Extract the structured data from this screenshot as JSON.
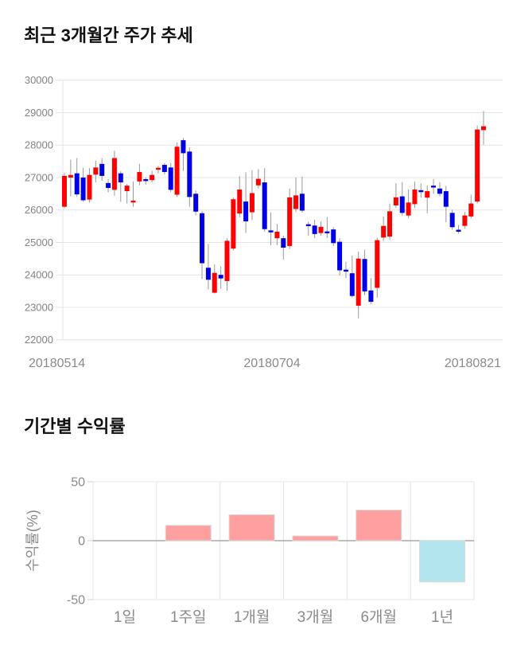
{
  "price_section": {
    "title": "최근 3개월간 주가 추세"
  },
  "returns_section": {
    "title": "기간별 수익률"
  },
  "chart_data": [
    {
      "type": "candlestick",
      "title": "최근 3개월간 주가 추세",
      "ylim": [
        22000,
        30000
      ],
      "y_ticks": [
        30000,
        29000,
        28000,
        27000,
        26000,
        25000,
        24000,
        23000,
        22000
      ],
      "x_tick_labels": [
        "20180514",
        "20180704",
        "20180821"
      ],
      "grid": true,
      "up_color": "#ff0000",
      "down_color": "#0000e6",
      "wick_color": "#999999",
      "grid_color": "#e4e4e4",
      "tick_label_color": "#828282",
      "candle_format": [
        "open",
        "high",
        "low",
        "close"
      ],
      "candles": [
        [
          26100,
          27150,
          26050,
          27050
        ],
        [
          27000,
          27550,
          26420,
          27080
        ],
        [
          27130,
          27600,
          26400,
          26480
        ],
        [
          27000,
          27300,
          26250,
          26300
        ],
        [
          26320,
          27290,
          26230,
          27080
        ],
        [
          27090,
          27520,
          26850,
          27310
        ],
        [
          27420,
          27600,
          26900,
          27050
        ],
        [
          26830,
          26950,
          26550,
          26680
        ],
        [
          26620,
          27830,
          26440,
          27600
        ],
        [
          27130,
          27200,
          26250,
          26850
        ],
        [
          26580,
          26800,
          26200,
          26750
        ],
        [
          26230,
          26880,
          26100,
          26290
        ],
        [
          26880,
          27420,
          26760,
          27170
        ],
        [
          26950,
          27000,
          26780,
          26900
        ],
        [
          26920,
          27210,
          26850,
          27080
        ],
        [
          27280,
          27360,
          27130,
          27300
        ],
        [
          27390,
          27450,
          27100,
          27170
        ],
        [
          27310,
          27450,
          26550,
          26620
        ],
        [
          26470,
          28080,
          26400,
          27950
        ],
        [
          28150,
          28220,
          27200,
          27750
        ],
        [
          27800,
          27930,
          26100,
          26400
        ],
        [
          26500,
          26600,
          25830,
          25950
        ],
        [
          25900,
          25960,
          23870,
          24360
        ],
        [
          24220,
          24950,
          23550,
          23850
        ],
        [
          23450,
          24320,
          23430,
          24060
        ],
        [
          24000,
          24260,
          23570,
          23890
        ],
        [
          23810,
          25130,
          23510,
          25050
        ],
        [
          24810,
          26380,
          24750,
          26330
        ],
        [
          25890,
          27040,
          25770,
          26630
        ],
        [
          26260,
          27160,
          25290,
          25650
        ],
        [
          25930,
          27230,
          25690,
          26520
        ],
        [
          26760,
          27260,
          26660,
          26960
        ],
        [
          26850,
          27290,
          25330,
          25410
        ],
        [
          25370,
          25930,
          24910,
          25340
        ],
        [
          25130,
          25570,
          24920,
          25330
        ],
        [
          25130,
          25210,
          24470,
          24840
        ],
        [
          24890,
          26660,
          24800,
          26390
        ],
        [
          26030,
          27000,
          25940,
          26450
        ],
        [
          26500,
          27030,
          25920,
          25980
        ],
        [
          25560,
          25640,
          25210,
          25540
        ],
        [
          25520,
          25700,
          25130,
          25260
        ],
        [
          25290,
          25650,
          25210,
          25480
        ],
        [
          25340,
          25780,
          25130,
          25320
        ],
        [
          25400,
          25470,
          24890,
          24980
        ],
        [
          25020,
          25130,
          23980,
          24140
        ],
        [
          24160,
          24400,
          23900,
          24120
        ],
        [
          24050,
          24600,
          23300,
          23350
        ],
        [
          23050,
          24720,
          22660,
          24500
        ],
        [
          24490,
          24780,
          23380,
          23490
        ],
        [
          23520,
          23900,
          23100,
          23170
        ],
        [
          23600,
          25150,
          23300,
          25070
        ],
        [
          25150,
          25800,
          25050,
          25510
        ],
        [
          25180,
          26200,
          25080,
          25960
        ],
        [
          26140,
          26820,
          26060,
          26390
        ],
        [
          26420,
          26860,
          25820,
          25910
        ],
        [
          25830,
          26630,
          25740,
          26230
        ],
        [
          26180,
          26870,
          26060,
          26630
        ],
        [
          26610,
          26820,
          26380,
          26590
        ],
        [
          26380,
          26760,
          25900,
          26580
        ],
        [
          26750,
          26950,
          26500,
          26700
        ],
        [
          26660,
          26860,
          26420,
          26500
        ],
        [
          26580,
          26740,
          25620,
          26100
        ],
        [
          25910,
          26010,
          25390,
          25470
        ],
        [
          25390,
          25540,
          25270,
          25370
        ],
        [
          25510,
          25940,
          25420,
          25830
        ],
        [
          25800,
          26470,
          25740,
          26200
        ],
        [
          26260,
          28600,
          26200,
          28480
        ],
        [
          28460,
          29050,
          28010,
          28580
        ]
      ]
    },
    {
      "type": "bar",
      "title": "기간별 수익률",
      "ylabel": "수익률(%)",
      "categories": [
        "1일",
        "1주일",
        "1개월",
        "3개월",
        "6개월",
        "1년"
      ],
      "values": [
        0,
        13,
        22,
        4,
        26,
        -35
      ],
      "ylim": [
        -50,
        50
      ],
      "y_ticks": [
        50,
        0,
        -50
      ],
      "grid": true,
      "positive_color": "#ffa0a0",
      "negative_color": "#b3e5ef",
      "bar_border_color": "#d9d9d9",
      "zero_line_color": "#999999",
      "grid_color": "#e4e4e4",
      "tick_label_color": "#8a8a8a"
    }
  ]
}
